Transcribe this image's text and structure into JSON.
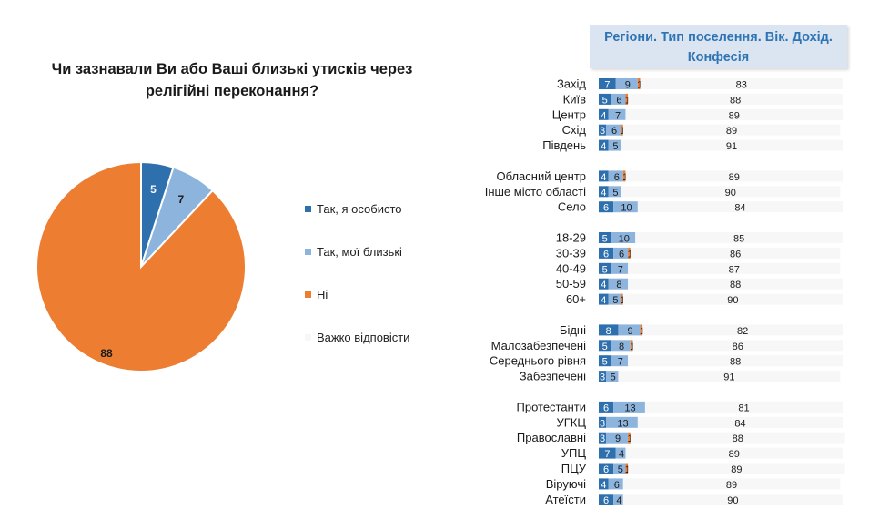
{
  "chart_data": [
    {
      "type": "pie",
      "title": "Чи зазнавали Ви або Ваші близькі утисків через релігійні переконання?",
      "slices": [
        {
          "label": "Так, я особисто",
          "value": 5,
          "color": "#2e6fad"
        },
        {
          "label": "Так, мої близькі",
          "value": 7,
          "color": "#8db4dd"
        },
        {
          "label": "Ні",
          "value": 88,
          "color": "#ed7d31"
        },
        {
          "label": "Важко відповісти",
          "value": 0,
          "color": "#f7f7f7"
        }
      ]
    },
    {
      "type": "bar",
      "stacked": true,
      "orientation": "horizontal",
      "title": "Регіони. Тип поселення. Вік. Дохід. Конфесія",
      "xlim": [
        0,
        100
      ],
      "series_colors": [
        "#2e6fad",
        "#8db4dd",
        "#ed7d31",
        "#f7f7f7"
      ],
      "groups": [
        {
          "rows": [
            {
              "label": "Захід",
              "values": [
                7,
                9,
                1,
                83
              ]
            },
            {
              "label": "Київ",
              "values": [
                5,
                6,
                1,
                88
              ]
            },
            {
              "label": "Центр",
              "values": [
                4,
                7,
                0,
                89
              ]
            },
            {
              "label": "Схід",
              "values": [
                3,
                6,
                1,
                89
              ]
            },
            {
              "label": "Південь",
              "values": [
                4,
                5,
                0,
                91
              ]
            }
          ]
        },
        {
          "rows": [
            {
              "label": "Обласний центр",
              "values": [
                4,
                6,
                1,
                89
              ]
            },
            {
              "label": "Інше місто області",
              "values": [
                4,
                5,
                0,
                90
              ]
            },
            {
              "label": "Село",
              "values": [
                6,
                10,
                0,
                84
              ]
            }
          ]
        },
        {
          "rows": [
            {
              "label": "18-29",
              "values": [
                5,
                10,
                0,
                85
              ]
            },
            {
              "label": "30-39",
              "values": [
                6,
                6,
                1,
                86
              ]
            },
            {
              "label": "40-49",
              "values": [
                5,
                7,
                0,
                87
              ]
            },
            {
              "label": "50-59",
              "values": [
                4,
                8,
                0,
                88
              ]
            },
            {
              "label": "60+",
              "values": [
                4,
                5,
                1,
                90
              ]
            }
          ]
        },
        {
          "rows": [
            {
              "label": "Бідні",
              "values": [
                8,
                9,
                1,
                82
              ]
            },
            {
              "label": "Малозабезпечені",
              "values": [
                5,
                8,
                1,
                86
              ]
            },
            {
              "label": "Середнього рівня",
              "values": [
                5,
                7,
                0,
                88
              ]
            },
            {
              "label": "Забезпечені",
              "values": [
                3,
                5,
                0,
                91
              ]
            }
          ]
        },
        {
          "rows": [
            {
              "label": "Протестанти",
              "values": [
                6,
                13,
                0,
                81
              ]
            },
            {
              "label": "УГКЦ",
              "values": [
                3,
                13,
                0,
                84
              ]
            },
            {
              "label": "Православні",
              "values": [
                3,
                9,
                1,
                88
              ]
            },
            {
              "label": "УПЦ",
              "values": [
                7,
                4,
                0,
                89
              ]
            },
            {
              "label": "ПЦУ",
              "values": [
                6,
                5,
                1,
                89
              ]
            },
            {
              "label": "Віруючі",
              "values": [
                4,
                6,
                0,
                89
              ]
            },
            {
              "label": "Атеїсти",
              "values": [
                6,
                4,
                0,
                90
              ]
            }
          ]
        }
      ]
    }
  ]
}
